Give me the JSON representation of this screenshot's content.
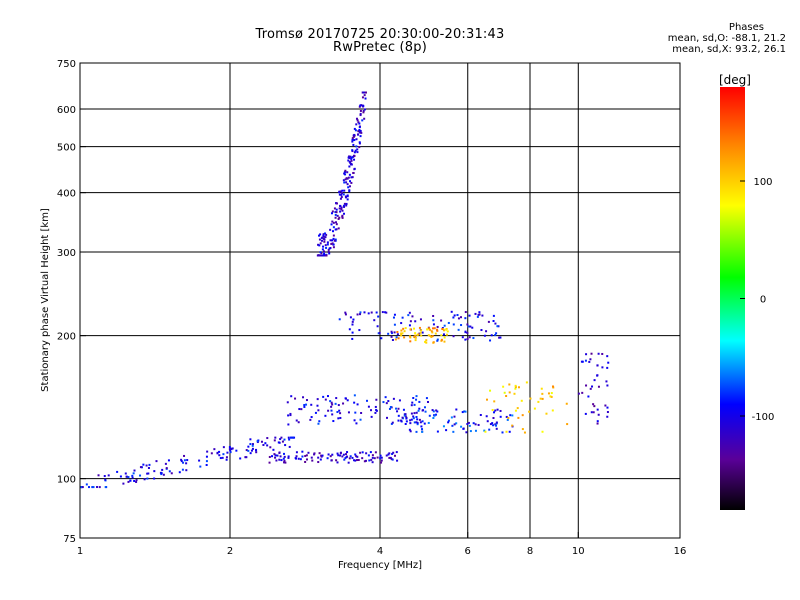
{
  "title": "Tromsø 20170725 20:30:00-20:31:43",
  "subtitle": "RwPretec (8p)",
  "phases": {
    "heading": "Phases",
    "line_o": "mean, sd,O: -88.1, 21.2",
    "line_x": "mean, sd,X:  93.2, 26.1"
  },
  "colorbar": {
    "label": "[deg]",
    "ticks": [
      "100",
      "0",
      "-100"
    ],
    "tick_values": [
      100,
      0,
      -100
    ],
    "range": [
      -180,
      180
    ]
  },
  "chart_data": {
    "type": "scatter",
    "xlabel": "Frequency [MHz]",
    "ylabel": "Stationary phase Virtual Height [km]",
    "xscale": "log",
    "yscale": "log",
    "xlim": [
      1,
      16
    ],
    "ylim": [
      75,
      750
    ],
    "x_ticks": [
      1,
      2,
      4,
      6,
      8,
      10,
      16
    ],
    "x_tick_labels": [
      "1",
      "2",
      "4",
      "6",
      "8",
      "10",
      "16"
    ],
    "y_ticks": [
      75,
      100,
      200,
      300,
      400,
      500,
      600,
      750
    ],
    "y_tick_labels": [
      "75",
      "100",
      "200",
      "300",
      "400",
      "500",
      "600",
      "750"
    ],
    "grid": true,
    "traces": [
      {
        "x_range": [
          1.0,
          2.7
        ],
        "h_range": [
          96,
          122
        ],
        "phase": -100,
        "trend": "rising",
        "count": 140
      },
      {
        "x_range": [
          2.6,
          5.0
        ],
        "h_range": [
          130,
          150
        ],
        "phase": -100,
        "trend": "flat",
        "count": 110
      },
      {
        "x_range": [
          2.4,
          4.4
        ],
        "h_range": [
          108,
          114
        ],
        "phase": -110,
        "trend": "flat",
        "count": 110
      },
      {
        "x_range": [
          4.4,
          7.5
        ],
        "h_range": [
          125,
          140
        ],
        "phase": -90,
        "trend": "flat",
        "count": 90
      },
      {
        "x_range": [
          6.5,
          9.5
        ],
        "h_range": [
          125,
          160
        ],
        "phase": 100,
        "trend": "scattered",
        "count": 45
      },
      {
        "x_range": [
          3.0,
          3.75
        ],
        "h_range": [
          295,
          650
        ],
        "phase": -110,
        "trend": "rising-steep",
        "count": 240
      },
      {
        "x_range": [
          3.3,
          7.0
        ],
        "h_range": [
          195,
          225
        ],
        "phase": -100,
        "trend": "flat",
        "count": 110
      },
      {
        "x_range": [
          4.3,
          5.5
        ],
        "h_range": [
          193,
          208
        ],
        "phase": 110,
        "trend": "flat",
        "count": 60
      },
      {
        "x_range": [
          10.0,
          11.5
        ],
        "h_range": [
          130,
          185
        ],
        "phase": -110,
        "trend": "scattered",
        "count": 40
      }
    ]
  }
}
